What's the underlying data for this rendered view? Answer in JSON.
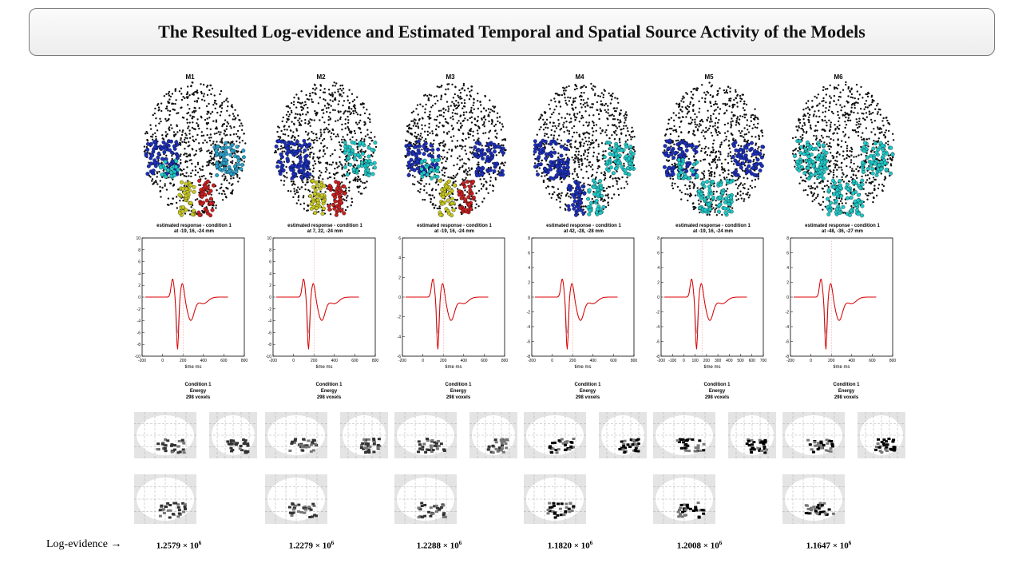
{
  "title": "The Resulted Log-evidence and Estimated Temporal and Spatial Source Activity of the Models",
  "log_evidence_label": "Log-evidence →",
  "x_axis_label": "time ms",
  "condition_lines": [
    "Condition 1",
    "Energy",
    "298 voxels"
  ],
  "models": [
    {
      "name": "M1",
      "resp_line1": "estimated response - condition 1",
      "resp_line2": "at -19, 16, -24 mm",
      "y_ticks": [
        "10",
        "8",
        "6",
        "4",
        "2",
        "0",
        "-2",
        "-4",
        "-6",
        "-8",
        "-10"
      ],
      "x_ticks": [
        "-200",
        "0",
        "200",
        "400",
        "600",
        "800"
      ],
      "log_mantissa": "1.2579",
      "log_exp": "6",
      "brain_colors": {
        "ll": "#1c2fb8",
        "lr": "#2aa0c8",
        "ul": "#c8c820",
        "ur": "#c82020",
        "extra": "#20c8c8"
      }
    },
    {
      "name": "M2",
      "resp_line1": "estimated response - condition 1",
      "resp_line2": "at 7, 22, -24 mm",
      "y_ticks": [
        "10",
        "8",
        "6",
        "4",
        "2",
        "0",
        "-2",
        "-4",
        "-6",
        "-8",
        "-10"
      ],
      "x_ticks": [
        "-200",
        "0",
        "200",
        "400",
        "600",
        "800"
      ],
      "log_mantissa": "1.2279",
      "log_exp": "6",
      "brain_colors": {
        "ll": "#1c2fb8",
        "lr": "#20c8c8",
        "ul": "#c8c820",
        "ur": "#c82020",
        "extra": "#1c2fb8"
      }
    },
    {
      "name": "M3",
      "resp_line1": "estimated response - condition 1",
      "resp_line2": "at -19, 16, -24 mm",
      "y_ticks": [
        "6",
        "4",
        "2",
        "0",
        "-2",
        "-4",
        "-6"
      ],
      "x_ticks": [
        "-200",
        "0",
        "200",
        "400",
        "600",
        "800"
      ],
      "log_mantissa": "1.2288",
      "log_exp": "6",
      "brain_colors": {
        "ll": "#1c2fb8",
        "lr": "#1c2fb8",
        "ul": "#c8c820",
        "ur": "#c82020",
        "extra": "#20c8c8"
      }
    },
    {
      "name": "M4",
      "resp_line1": "estimated response - condition 1",
      "resp_line2": "at 42, -28, -28 mm",
      "y_ticks": [
        "8",
        "6",
        "4",
        "2",
        "0",
        "-2",
        "-4",
        "-6",
        "-8"
      ],
      "x_ticks": [
        "-200",
        "0",
        "200",
        "400",
        "600",
        "800"
      ],
      "log_mantissa": "1.1820",
      "log_exp": "6",
      "brain_colors": {
        "ll": "#1c2fb8",
        "lr": "#20c8c8",
        "ul": "#1c2fb8",
        "ur": "#20c8c8",
        "extra": "#1c2fb8"
      }
    },
    {
      "name": "M5",
      "resp_line1": "estimated response - condition 1",
      "resp_line2": "at -19, 16, -24 mm",
      "y_ticks": [
        "8",
        "6",
        "4",
        "2",
        "0",
        "-2",
        "-4",
        "-6",
        "-8"
      ],
      "x_ticks": [
        "-200",
        "-100",
        "0",
        "100",
        "200",
        "300",
        "400",
        "500",
        "600",
        "700"
      ],
      "log_mantissa": "1.2008",
      "log_exp": "6",
      "brain_colors": {
        "ll": "#1c2fb8",
        "lr": "#1c2fb8",
        "ul": "#20c8c8",
        "ur": "#20c8c8",
        "extra": "#20c8c8"
      }
    },
    {
      "name": "M6",
      "resp_line1": "estimated response - condition 1",
      "resp_line2": "at -48, -36, -27 mm",
      "y_ticks": [
        "8",
        "6",
        "4",
        "2",
        "0",
        "-2",
        "-4",
        "-6",
        "-8"
      ],
      "x_ticks": [
        "-200",
        "0",
        "200",
        "400",
        "600",
        "800"
      ],
      "log_mantissa": "1.1647",
      "log_exp": "6",
      "brain_colors": {
        "ll": "#20c8c8",
        "lr": "#20c8c8",
        "ul": "#20c8c8",
        "ur": "#20c8c8",
        "extra": "#20c8c8"
      }
    }
  ]
}
